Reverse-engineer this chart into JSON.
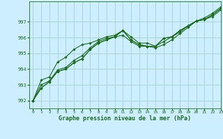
{
  "xlabel": "Graphe pression niveau de la mer (hPa)",
  "background_color": "#cceeff",
  "grid_color": "#aad4d4",
  "line_color": "#1a6b1a",
  "xlim": [
    -0.5,
    23
  ],
  "ylim": [
    991.5,
    998.3
  ],
  "yticks": [
    992,
    993,
    994,
    995,
    996,
    997
  ],
  "xticks": [
    0,
    1,
    2,
    3,
    4,
    5,
    6,
    7,
    8,
    9,
    10,
    11,
    12,
    13,
    14,
    15,
    16,
    17,
    18,
    19,
    20,
    21,
    22,
    23
  ],
  "series": [
    [
      992.0,
      992.8,
      993.2,
      993.85,
      994.0,
      994.4,
      994.65,
      995.25,
      995.65,
      995.85,
      996.05,
      996.45,
      995.85,
      995.55,
      995.45,
      995.45,
      995.95,
      996.05,
      996.45,
      996.75,
      997.05,
      997.15,
      997.45,
      997.85
    ],
    [
      992.0,
      993.0,
      993.25,
      993.95,
      994.1,
      994.55,
      994.85,
      995.35,
      995.75,
      995.95,
      996.05,
      996.15,
      995.75,
      995.45,
      995.45,
      995.35,
      995.55,
      995.85,
      996.25,
      996.65,
      997.05,
      997.15,
      997.35,
      997.75
    ],
    [
      992.0,
      993.3,
      993.5,
      994.45,
      994.75,
      995.25,
      995.55,
      995.65,
      995.85,
      996.05,
      996.15,
      996.45,
      996.05,
      995.65,
      995.65,
      995.45,
      995.75,
      996.05,
      996.35,
      996.75,
      997.05,
      997.25,
      997.55,
      997.95
    ],
    [
      992.0,
      992.8,
      993.2,
      993.85,
      994.0,
      994.4,
      994.65,
      995.25,
      995.65,
      995.85,
      996.05,
      996.45,
      995.85,
      995.55,
      995.45,
      995.45,
      995.95,
      996.05,
      996.45,
      996.75,
      997.05,
      997.15,
      997.45,
      997.85
    ]
  ]
}
